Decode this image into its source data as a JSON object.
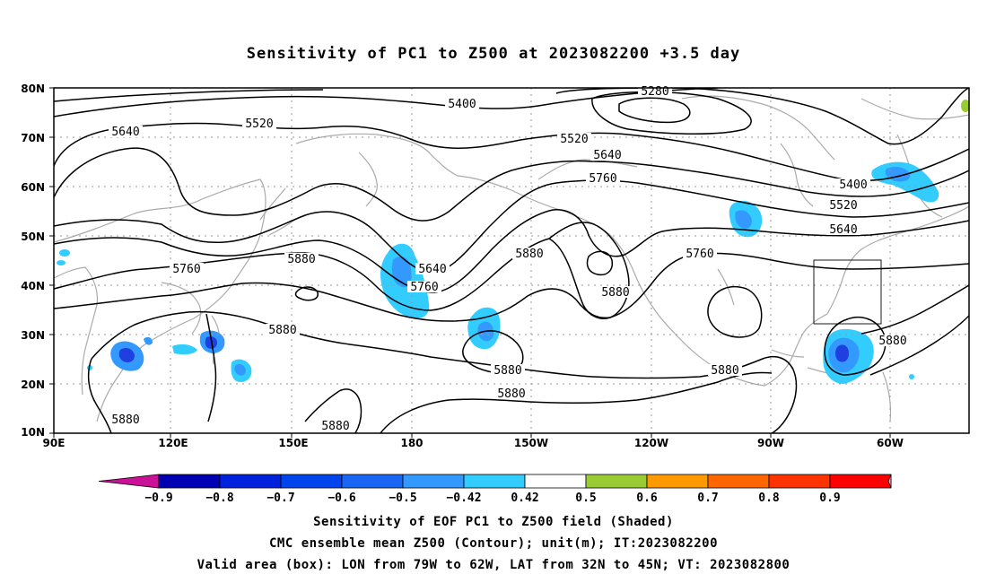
{
  "title": "Sensitivity of PC1 to Z500 at 2023082200 +3.5 day",
  "map": {
    "lat_labels": [
      "80N",
      "70N",
      "60N",
      "50N",
      "40N",
      "30N",
      "20N",
      "10N"
    ],
    "lon_labels": [
      "90E",
      "120E",
      "150E",
      "180",
      "150W",
      "120W",
      "90W",
      "60W"
    ],
    "contour_labels": [
      {
        "text": "5280"
      },
      {
        "text": "5400"
      },
      {
        "text": "5520"
      },
      {
        "text": "5640"
      },
      {
        "text": "5520"
      },
      {
        "text": "5640"
      },
      {
        "text": "5760"
      },
      {
        "text": "5400"
      },
      {
        "text": "5520"
      },
      {
        "text": "5640"
      },
      {
        "text": "5760"
      },
      {
        "text": "5880"
      },
      {
        "text": "5640"
      },
      {
        "text": "5760"
      },
      {
        "text": "5880"
      },
      {
        "text": "5760"
      },
      {
        "text": "5880"
      },
      {
        "text": "5880"
      },
      {
        "text": "5880"
      },
      {
        "text": "5880"
      },
      {
        "text": "5880"
      },
      {
        "text": "5880"
      },
      {
        "text": "5880"
      },
      {
        "text": "5880"
      }
    ],
    "valid_box": {
      "lon_from": "79W",
      "lon_to": "62W",
      "lat_from": "32N",
      "lat_to": "45N"
    },
    "shade_colors": {
      "neg_strong": "#1f3fe0",
      "neg_mid": "#3399ff",
      "neg_weak": "#33ccff",
      "pos_weak": "#99cc33"
    }
  },
  "colorbar": {
    "labels": [
      "-0.9",
      "-0.8",
      "-0.7",
      "-0.6",
      "-0.5",
      "-0.42",
      "0.42",
      "0.5",
      "0.6",
      "0.7",
      "0.8",
      "0.9"
    ],
    "colors": [
      "#0000b3",
      "#0022dd",
      "#0044ee",
      "#1a66f2",
      "#3399ff",
      "#33ccff",
      "#ffffff",
      "#99cc33",
      "#ff9900",
      "#ff6600",
      "#ff3300",
      "#ff0000"
    ],
    "low_end_color": "#cc1199",
    "high_end_color": "#ff99cc"
  },
  "captions": {
    "line1": "Sensitivity of EOF PC1 to Z500 field (Shaded)",
    "line2": "CMC ensemble mean Z500 (Contour); unit(m); IT:2023082200",
    "line3": "Valid area (box): LON from 79W to 62W, LAT from 32N to 45N; VT: 2023082800"
  }
}
